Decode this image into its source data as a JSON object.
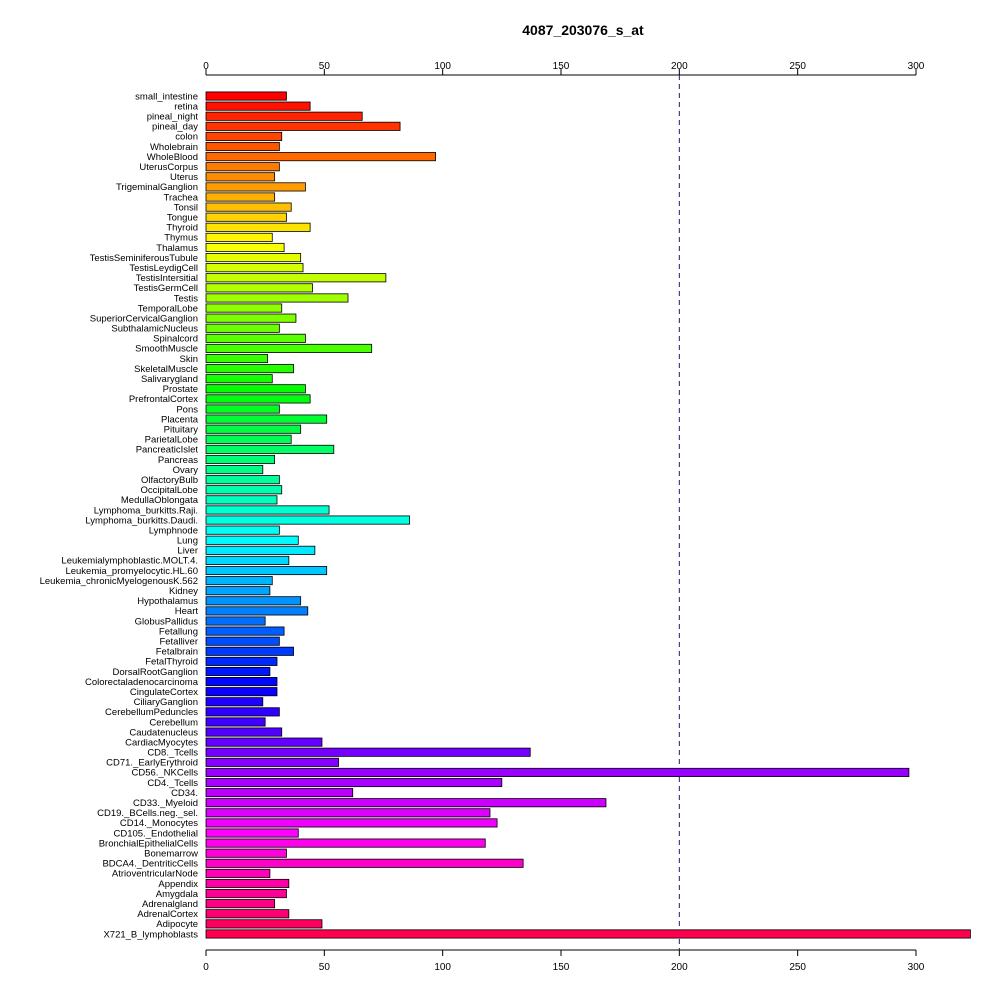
{
  "chart_data": {
    "type": "bar",
    "orientation": "horizontal",
    "title": "4087_203076_s_at",
    "xlim": [
      0,
      300
    ],
    "x_ticks": [
      0,
      50,
      100,
      150,
      200,
      250,
      300
    ],
    "x_axis_positions": [
      "top",
      "bottom"
    ],
    "reference_line": {
      "value": 200,
      "style": "dashed",
      "color": "#1a1a80"
    },
    "grid": false,
    "legend": "none",
    "categories": [
      "small_intestine",
      "retina",
      "pineal_night",
      "pineal_day",
      "colon",
      "Wholebrain",
      "WholeBlood",
      "UterusCorpus",
      "Uterus",
      "TrigeminalGanglion",
      "Trachea",
      "Tonsil",
      "Tongue",
      "Thyroid",
      "Thymus",
      "Thalamus",
      "TestisSeminiferousTubule",
      "TestisLeydigCell",
      "TestisIntersitial",
      "TestisGermCell",
      "Testis",
      "TemporalLobe",
      "SuperiorCervicalGanglion",
      "SubthalamicNucleus",
      "Spinalcord",
      "SmoothMuscle",
      "Skin",
      "SkeletalMuscle",
      "Salivarygland",
      "Prostate",
      "PrefrontalCortex",
      "Pons",
      "Placenta",
      "Pituitary",
      "ParietalLobe",
      "PancreaticIslet",
      "Pancreas",
      "Ovary",
      "OlfactoryBulb",
      "OccipitalLobe",
      "MedullaOblongata",
      "Lymphoma_burkitts.Raji.",
      "Lymphoma_burkitts.Daudi.",
      "Lymphnode",
      "Lung",
      "Liver",
      "Leukemialymphoblastic.MOLT.4.",
      "Leukemia_promyelocytic.HL.60",
      "Leukemia_chronicMyelogenousK.562",
      "Kidney",
      "Hypothalamus",
      "Heart",
      "GlobusPallidus",
      "Fetallung",
      "Fetalliver",
      "Fetalbrain",
      "FetalThyroid",
      "DorsalRootGanglion",
      "Colorectaladenocarcinoma",
      "CingulateCortex",
      "CiliaryGanglion",
      "CerebellumPeduncles",
      "Cerebellum",
      "Caudatenucleus",
      "CardiacMyocytes",
      "CD8._Tcells",
      "CD71._EarlyErythroid",
      "CD56._NKCells",
      "CD4._Tcells",
      "CD34.",
      "CD33._Myeloid",
      "CD19._BCells.neg._sel.",
      "CD14._Monocytes",
      "CD105._Endothelial",
      "BronchialEpithelialCells",
      "Bonemarrow",
      "BDCA4._DentriticCells",
      "AtrioventricularNode",
      "Appendix",
      "Amygdala",
      "Adrenalgland",
      "AdrenalCortex",
      "Adipocyte",
      "X721_B_lymphoblasts"
    ],
    "values": [
      34,
      44,
      66,
      82,
      32,
      31,
      97,
      31,
      29,
      42,
      29,
      36,
      34,
      44,
      28,
      33,
      40,
      41,
      76,
      45,
      60,
      32,
      38,
      31,
      42,
      70,
      26,
      37,
      28,
      42,
      44,
      31,
      51,
      40,
      36,
      54,
      29,
      24,
      31,
      32,
      30,
      52,
      86,
      31,
      39,
      46,
      35,
      51,
      28,
      27,
      40,
      43,
      25,
      33,
      31,
      37,
      30,
      27,
      30,
      30,
      24,
      31,
      25,
      32,
      49,
      137,
      56,
      297,
      125,
      62,
      169,
      120,
      123,
      39,
      118,
      34,
      134,
      27,
      35,
      34,
      29,
      35,
      49,
      323
    ]
  }
}
